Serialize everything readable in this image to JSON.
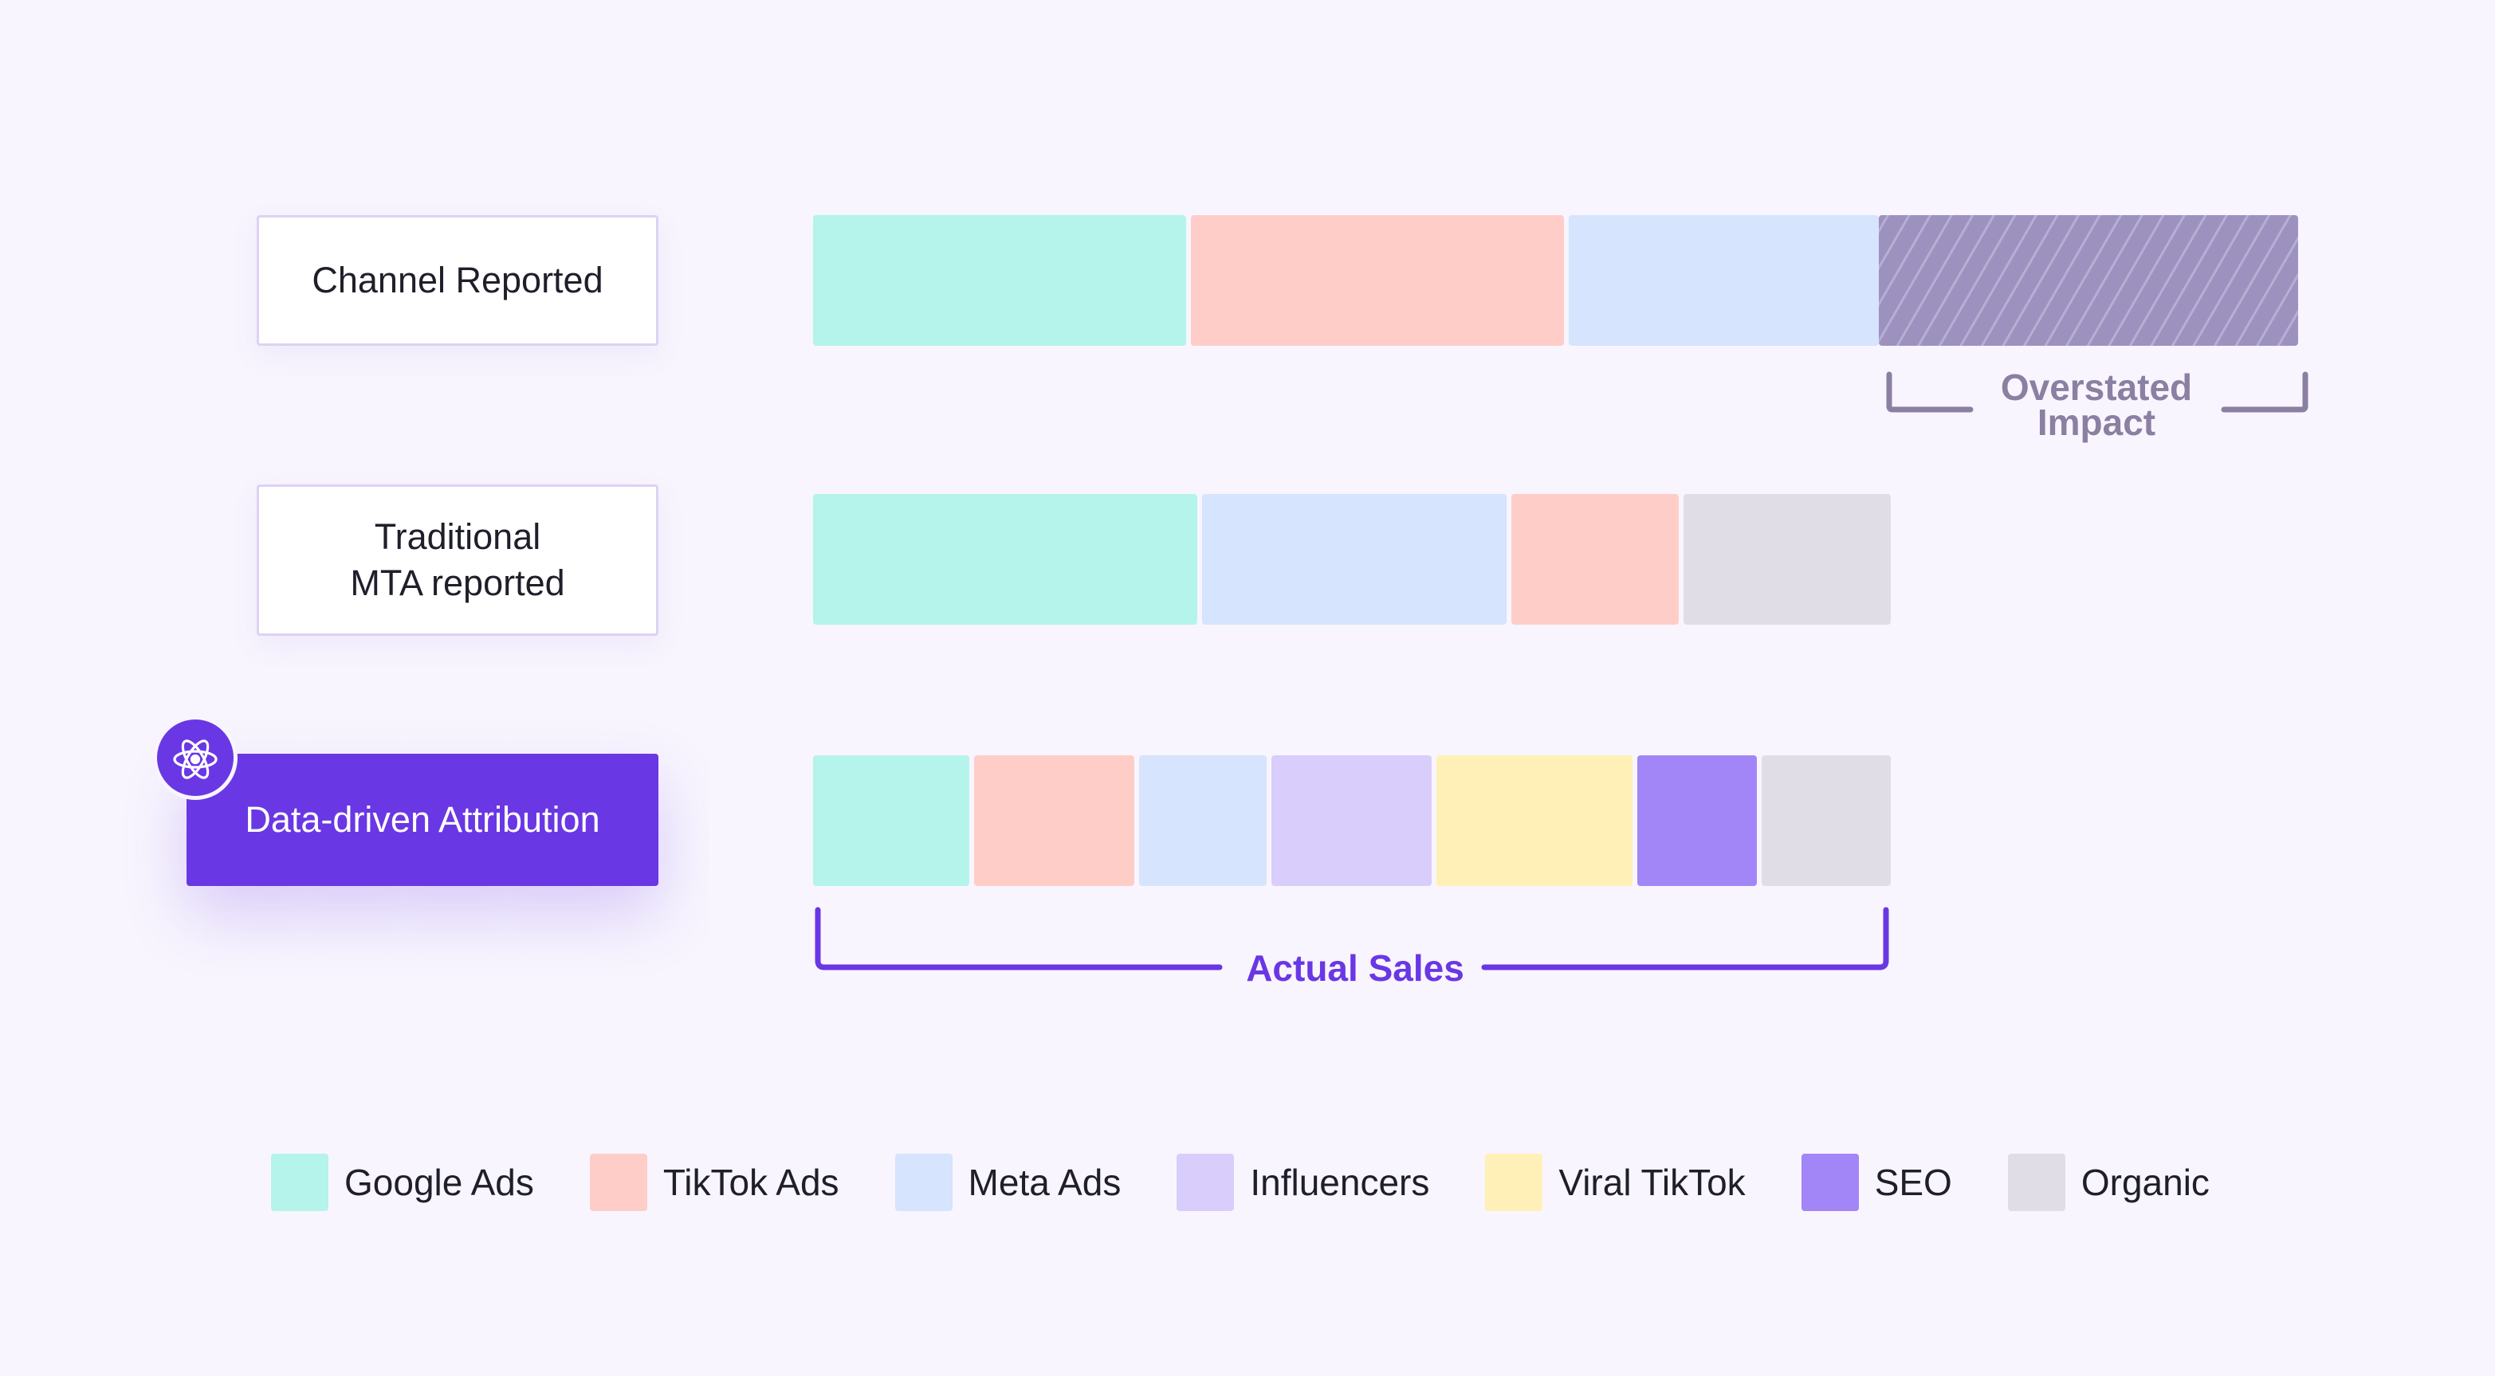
{
  "rows": [
    {
      "label_lines": [
        "Channel Reported"
      ],
      "segments": [
        {
          "channel": "Google Ads",
          "share": 0.2525
        },
        {
          "channel": "TikTok Ads",
          "share": 0.2525
        },
        {
          "channel": "Meta Ads",
          "share": 0.2095
        },
        {
          "channel": "Overstated Impact",
          "share": 0.2805
        }
      ]
    },
    {
      "label_lines": [
        "Traditional",
        "MTA reported"
      ],
      "segments": [
        {
          "channel": "Google Ads",
          "share": 0.361
        },
        {
          "channel": "Meta Ads",
          "share": 0.287
        },
        {
          "channel": "TikTok Ads",
          "share": 0.157
        },
        {
          "channel": "Organic",
          "share": 0.195
        }
      ]
    },
    {
      "label_lines": [
        "Data-driven Attribution"
      ],
      "segments": [
        {
          "channel": "Google Ads",
          "share": 0.149
        },
        {
          "channel": "TikTok Ads",
          "share": 0.153
        },
        {
          "channel": "Meta Ads",
          "share": 0.121
        },
        {
          "channel": "Influencers",
          "share": 0.153
        },
        {
          "channel": "Viral TikTok",
          "share": 0.187
        },
        {
          "channel": "SEO",
          "share": 0.114
        },
        {
          "channel": "Organic",
          "share": 0.123
        }
      ]
    }
  ],
  "annotations": {
    "overstated": [
      "Overstated",
      "Impact"
    ],
    "actual_sales": "Actual Sales"
  },
  "legend": [
    {
      "label": "Google Ads",
      "color": "#b4f4ea"
    },
    {
      "label": "TikTok Ads",
      "color": "#ffcdc8"
    },
    {
      "label": "Meta Ads",
      "color": "#d6e4fd"
    },
    {
      "label": "Influencers",
      "color": "#d9cdfb"
    },
    {
      "label": "Viral TikTok",
      "color": "#fff0b7"
    },
    {
      "label": "SEO",
      "color": "#a285f7"
    },
    {
      "label": "Organic",
      "color": "#e0dde7"
    }
  ],
  "colors": {
    "Overstated Impact": "#9d92bf",
    "accent": "#6a37e4",
    "muted_bracket": "#8b7fa2"
  },
  "badge_icon": "atom-icon"
}
